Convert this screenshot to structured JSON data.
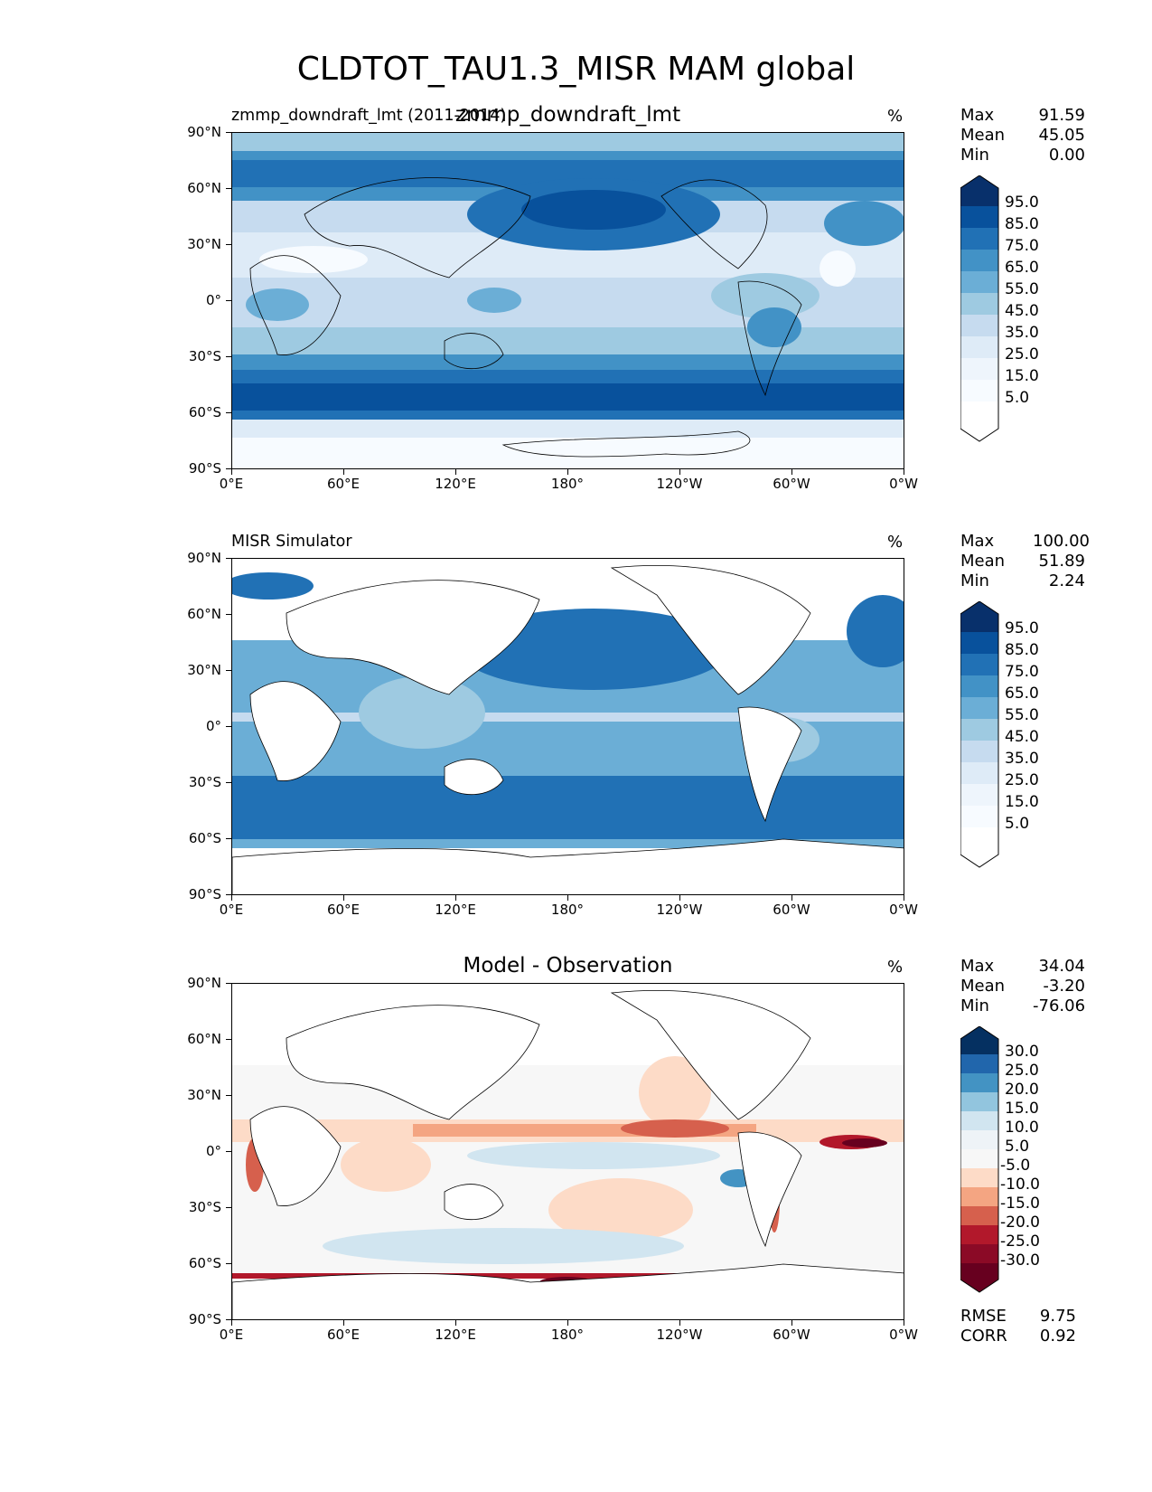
{
  "figure": {
    "title": "CLDTOT_TAU1.3_MISR MAM global"
  },
  "axes": {
    "lat_labels": [
      "90°N",
      "60°N",
      "30°N",
      "0°",
      "30°S",
      "60°S",
      "90°S"
    ],
    "lon_labels": [
      "0°E",
      "60°E",
      "120°E",
      "180°",
      "120°W",
      "60°W",
      "0°W"
    ]
  },
  "panels": [
    {
      "id": "model",
      "left_title": "zmmp_downdraft_lmt (2011-2014)",
      "center_title": "zmmp_downdraft_lmt",
      "units": "%",
      "stats": {
        "max_label": "Max",
        "max": "91.59",
        "mean_label": "Mean",
        "mean": "45.05",
        "min_label": "Min",
        "min": "0.00"
      },
      "colorbar": {
        "labels": [
          "95.0",
          "85.0",
          "75.0",
          "65.0",
          "55.0",
          "45.0",
          "35.0",
          "25.0",
          "15.0",
          "5.0"
        ],
        "colors": [
          "#08306b",
          "#08519c",
          "#2171b5",
          "#4292c6",
          "#6baed6",
          "#9ecae1",
          "#c6dbef",
          "#deebf7",
          "#eef5fc",
          "#f7fbff",
          "#ffffff"
        ]
      }
    },
    {
      "id": "obs",
      "left_title": "MISR Simulator",
      "center_title": "",
      "units": "%",
      "stats": {
        "max_label": "Max",
        "max": "100.00",
        "mean_label": "Mean",
        "mean": "51.89",
        "min_label": "Min",
        "min": "2.24"
      },
      "colorbar": {
        "labels": [
          "95.0",
          "85.0",
          "75.0",
          "65.0",
          "55.0",
          "45.0",
          "35.0",
          "25.0",
          "15.0",
          "5.0"
        ],
        "colors": [
          "#08306b",
          "#08519c",
          "#2171b5",
          "#4292c6",
          "#6baed6",
          "#9ecae1",
          "#c6dbef",
          "#deebf7",
          "#eef5fc",
          "#f7fbff",
          "#ffffff"
        ]
      }
    },
    {
      "id": "diff",
      "left_title": "",
      "center_title": "Model - Observation",
      "units": "%",
      "stats": {
        "max_label": "Max",
        "max": "34.04",
        "mean_label": "Mean",
        "mean": "-3.20",
        "min_label": "Min",
        "min": "-76.06"
      },
      "colorbar": {
        "labels": [
          "30.0",
          "25.0",
          "20.0",
          "15.0",
          "10.0",
          "5.0",
          "-5.0",
          "-10.0",
          "-15.0",
          "-20.0",
          "-25.0",
          "-30.0"
        ],
        "colors": [
          "#053061",
          "#2166ac",
          "#4393c3",
          "#92c5de",
          "#d1e5f0",
          "#eef3f7",
          "#f7f7f7",
          "#fddbc7",
          "#f4a582",
          "#d6604d",
          "#b2182b",
          "#67001f"
        ]
      },
      "metrics": {
        "rmse_label": "RMSE",
        "rmse": "9.75",
        "corr_label": "CORR",
        "corr": "0.92"
      }
    }
  ],
  "chart_data": {
    "type": "heatmap",
    "title": "CLDTOT_TAU1.3_MISR MAM global",
    "x_range": [
      0,
      360
    ],
    "y_range": [
      -90,
      90
    ],
    "panels": [
      {
        "name": "zmmp_downdraft_lmt",
        "max": 91.59,
        "mean": 45.05,
        "min": 0.0,
        "units": "%"
      },
      {
        "name": "MISR Simulator",
        "max": 100.0,
        "mean": 51.89,
        "min": 2.24,
        "units": "%"
      },
      {
        "name": "Model - Observation",
        "max": 34.04,
        "mean": -3.2,
        "min": -76.06,
        "units": "%",
        "rmse": 9.75,
        "corr": 0.92
      }
    ]
  }
}
